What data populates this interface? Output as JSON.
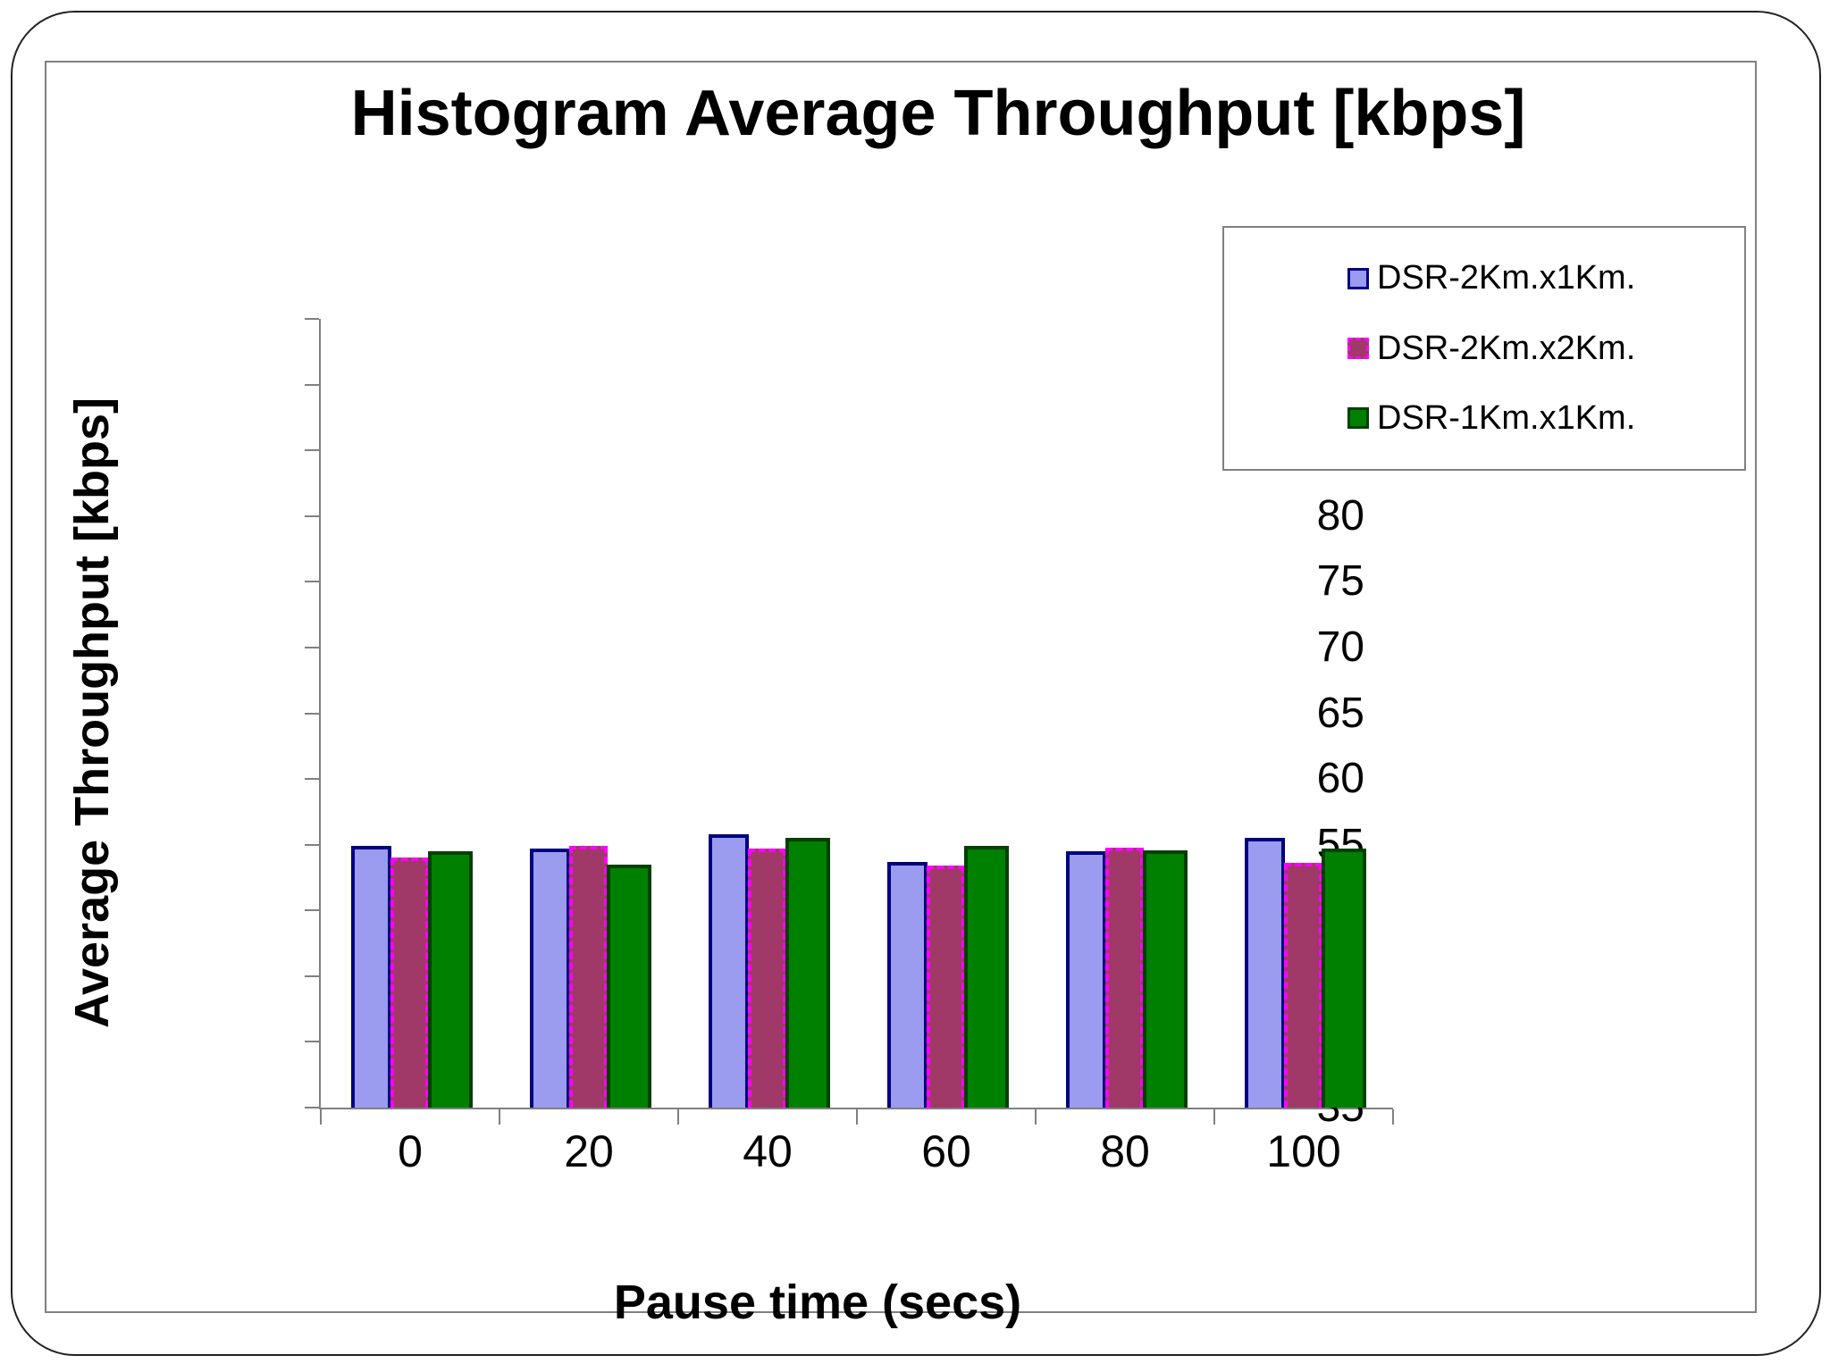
{
  "chart_data": {
    "type": "bar",
    "title": "Histogram Average Throughput [kbps]",
    "xlabel": "Pause time (secs)",
    "ylabel": "Average Throughput [kbps]",
    "categories": [
      "0",
      "20",
      "40",
      "60",
      "80",
      "100"
    ],
    "series": [
      {
        "name": "DSR-2Km.x1Km.",
        "fill": "#9B9BF0",
        "border_color": "#000080",
        "border_style": "solid",
        "values": [
          54.9,
          54.7,
          55.8,
          53.7,
          54.5,
          55.5
        ]
      },
      {
        "name": "DSR-2Km.x2Km.",
        "fill": "#A03868",
        "border_color": "#FF00FF",
        "border_style": "dashed",
        "values": [
          54.0,
          54.9,
          54.7,
          53.4,
          54.8,
          53.6
        ]
      },
      {
        "name": "DSR-1Km.x1Km.",
        "fill": "#008000",
        "border_color": "#004000",
        "border_style": "solid",
        "values": [
          54.5,
          53.5,
          55.5,
          54.9,
          54.6,
          54.7
        ]
      }
    ],
    "y_axis": {
      "min": 35,
      "max": 95,
      "step": 5
    },
    "x_axis_categories_count": 6,
    "legend_position": "top-right",
    "grid": false,
    "axis_color": "#808080",
    "background_color": "#FFFFFF"
  }
}
